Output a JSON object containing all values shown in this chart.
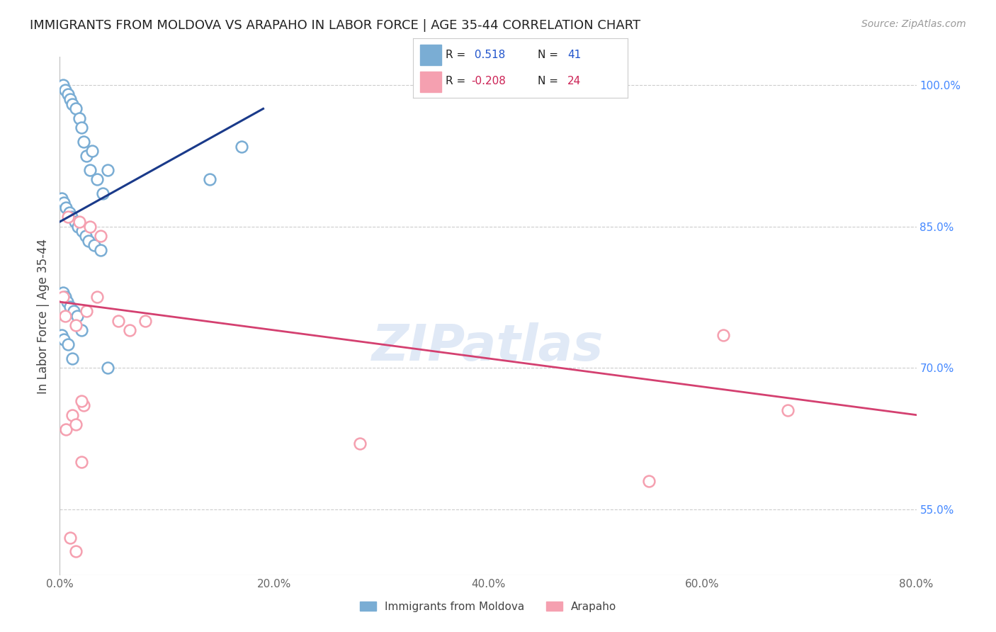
{
  "title": "IMMIGRANTS FROM MOLDOVA VS ARAPAHO IN LABOR FORCE | AGE 35-44 CORRELATION CHART",
  "source": "Source: ZipAtlas.com",
  "ylabel": "In Labor Force | Age 35-44",
  "xlabel_ticks": [
    "0.0%",
    "20.0%",
    "40.0%",
    "60.0%",
    "80.0%"
  ],
  "xlabel_vals": [
    0.0,
    20.0,
    40.0,
    60.0,
    80.0
  ],
  "ylabel_ticks": [
    "55.0%",
    "70.0%",
    "85.0%",
    "100.0%"
  ],
  "ylabel_vals": [
    55.0,
    70.0,
    85.0,
    100.0
  ],
  "xlim": [
    0.0,
    80.0
  ],
  "ylim": [
    48.0,
    103.0
  ],
  "blue_R": 0.518,
  "blue_N": 41,
  "pink_R": -0.208,
  "pink_N": 24,
  "blue_color": "#7aadd4",
  "blue_edge_color": "#7aadd4",
  "blue_line_color": "#1a3a8a",
  "pink_color": "#f5a0b0",
  "pink_edge_color": "#f5a0b0",
  "pink_line_color": "#d44070",
  "watermark": "ZIPatlas",
  "blue_scatter_x": [
    0.3,
    0.5,
    0.8,
    1.0,
    1.2,
    1.5,
    1.8,
    2.0,
    2.2,
    2.5,
    2.8,
    3.0,
    3.5,
    4.0,
    4.5,
    0.2,
    0.4,
    0.6,
    0.9,
    1.1,
    1.4,
    1.7,
    2.1,
    2.4,
    2.7,
    3.2,
    3.8,
    0.3,
    0.5,
    0.7,
    1.0,
    1.3,
    1.6,
    2.0,
    0.2,
    0.4,
    0.8,
    1.2,
    4.5,
    14.0,
    17.0
  ],
  "blue_scatter_y": [
    100.0,
    99.5,
    99.0,
    98.5,
    98.0,
    97.5,
    96.5,
    95.5,
    94.0,
    92.5,
    91.0,
    93.0,
    90.0,
    88.5,
    91.0,
    88.0,
    87.5,
    87.0,
    86.5,
    86.0,
    85.5,
    85.0,
    84.5,
    84.0,
    83.5,
    83.0,
    82.5,
    78.0,
    77.5,
    77.0,
    76.5,
    76.0,
    75.5,
    74.0,
    73.5,
    73.0,
    72.5,
    71.0,
    70.0,
    90.0,
    93.5
  ],
  "pink_scatter_x": [
    0.5,
    1.5,
    2.5,
    3.5,
    5.5,
    6.5,
    8.0,
    0.8,
    1.8,
    2.8,
    3.8,
    0.3,
    0.6,
    1.2,
    1.5,
    2.2,
    2.0,
    62.0,
    68.0,
    28.0,
    55.0,
    1.0,
    1.5,
    2.0
  ],
  "pink_scatter_y": [
    75.5,
    74.5,
    76.0,
    77.5,
    75.0,
    74.0,
    75.0,
    86.0,
    85.5,
    85.0,
    84.0,
    77.5,
    63.5,
    65.0,
    64.0,
    66.0,
    66.5,
    73.5,
    65.5,
    62.0,
    58.0,
    52.0,
    50.5,
    60.0
  ],
  "blue_trend_x": [
    0.0,
    19.0
  ],
  "blue_trend_y": [
    85.5,
    97.5
  ],
  "pink_trend_x": [
    0.0,
    80.0
  ],
  "pink_trend_y": [
    77.0,
    65.0
  ]
}
